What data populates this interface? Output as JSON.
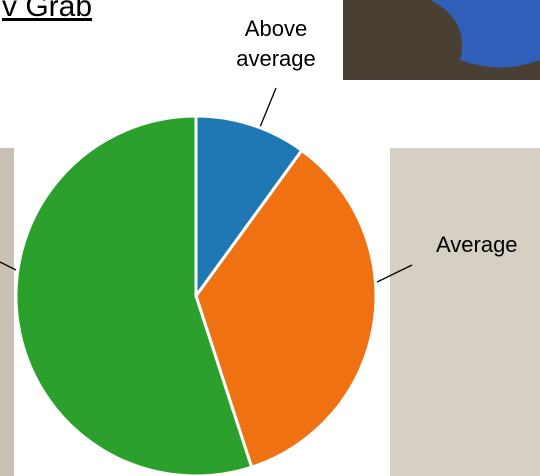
{
  "chart_data": {
    "type": "pie",
    "title": "v Grab",
    "categories": [
      "Above average",
      "Average",
      null
    ],
    "values": [
      10,
      35,
      55
    ],
    "colors": [
      "#1f77b4",
      "#ef7111",
      "#2ca02c"
    ]
  }
}
